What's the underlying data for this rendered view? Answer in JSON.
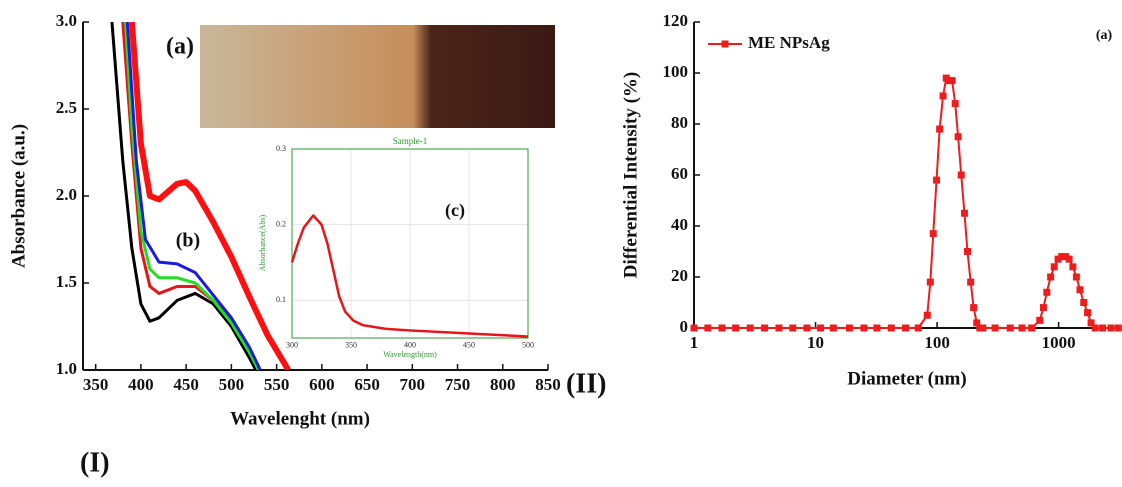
{
  "figure_labels": [
    "(I)",
    "(II)"
  ],
  "chart_data": [
    {
      "type": "line",
      "xlabel": "Wavelenght (nm)",
      "ylabel": "Absorbance (a.u.)",
      "annotations": [
        "(a)",
        "(b)"
      ],
      "xlim": [
        336,
        850
      ],
      "ylim": [
        1.0,
        3.0
      ],
      "xticks": [
        350,
        400,
        450,
        500,
        550,
        600,
        650,
        700,
        750,
        800,
        850
      ],
      "yticks": [
        {
          "value": 1.0,
          "label": "1.0"
        },
        {
          "value": 1.5,
          "label": "1.5"
        },
        {
          "value": 2.0,
          "label": "2.0"
        },
        {
          "value": 2.5,
          "label": "2.5"
        },
        {
          "value": 3.0,
          "label": "3.0"
        }
      ],
      "series": [
        {
          "color": "#000000",
          "line_width": 3,
          "x": [
            368,
            380,
            390,
            400,
            410,
            420,
            440,
            460,
            480,
            500,
            520,
            527
          ],
          "values": [
            3.0,
            2.2,
            1.7,
            1.38,
            1.28,
            1.3,
            1.4,
            1.44,
            1.38,
            1.25,
            1.07,
            1.0
          ]
        },
        {
          "color": "#e8141a",
          "line_width": 3,
          "x": [
            380,
            390,
            400,
            410,
            420,
            440,
            460,
            480,
            500,
            520,
            530
          ],
          "values": [
            3.0,
            2.3,
            1.7,
            1.48,
            1.44,
            1.48,
            1.48,
            1.4,
            1.28,
            1.1,
            1.0
          ]
        },
        {
          "color": "#22dd22",
          "line_width": 3,
          "x": [
            383,
            390,
            400,
            410,
            420,
            440,
            460,
            480,
            500,
            520,
            530
          ],
          "values": [
            3.0,
            2.4,
            1.8,
            1.58,
            1.53,
            1.53,
            1.5,
            1.4,
            1.27,
            1.1,
            1.0
          ]
        },
        {
          "color": "#1a1ae0",
          "line_width": 3,
          "x": [
            385,
            395,
            405,
            420,
            440,
            460,
            480,
            500,
            520,
            532
          ],
          "values": [
            3.0,
            2.2,
            1.75,
            1.62,
            1.61,
            1.56,
            1.43,
            1.3,
            1.13,
            1.0
          ]
        },
        {
          "color": "#ff1010",
          "line_width": 6,
          "x": [
            390,
            400,
            410,
            420,
            440,
            450,
            460,
            480,
            500,
            520,
            540,
            563
          ],
          "values": [
            3.0,
            2.3,
            2.0,
            1.98,
            2.07,
            2.08,
            2.03,
            1.85,
            1.65,
            1.42,
            1.2,
            1.0
          ]
        }
      ]
    },
    {
      "type": "line",
      "title": "Sample-1",
      "xlabel": "Wavelength(nm)",
      "ylabel": "Absorbance(Abs)",
      "annotations": [
        "(c)"
      ],
      "axis_color": "#2e9a2e",
      "grid": true,
      "xlim": [
        300,
        500
      ],
      "ylim": [
        0.05,
        0.3
      ],
      "xticks": [
        300,
        350,
        400,
        450,
        500
      ],
      "yticks": [
        0.1,
        0.2,
        0.3
      ],
      "series": [
        {
          "color": "#e8141a",
          "line_width": 2.5,
          "x": [
            300,
            305,
            310,
            318,
            325,
            330,
            335,
            340,
            345,
            352,
            360,
            380,
            400,
            450,
            500
          ],
          "values": [
            0.15,
            0.175,
            0.196,
            0.212,
            0.2,
            0.175,
            0.14,
            0.105,
            0.085,
            0.073,
            0.067,
            0.062,
            0.06,
            0.056,
            0.052
          ]
        }
      ]
    },
    {
      "type": "line",
      "xlabel": "Diameter (nm)",
      "ylabel": "Differential Intensity (%)",
      "annotations": [
        "(a)"
      ],
      "log_x": true,
      "marker": "square",
      "legend": "upper left",
      "xlim": [
        1,
        3200
      ],
      "ylim": [
        0,
        120
      ],
      "xticks": [
        1,
        10,
        100,
        1000
      ],
      "yticks": [
        0,
        20,
        40,
        60,
        80,
        100,
        120
      ],
      "series": [
        {
          "name": "ME NPsAg",
          "color": "#ee1c1c",
          "line_width": 2,
          "x": [
            1,
            1.3,
            1.7,
            2.2,
            2.9,
            3.8,
            5,
            6.5,
            8.5,
            11,
            14,
            19,
            25,
            32,
            42,
            55,
            70,
            83,
            88,
            93,
            99,
            105,
            112,
            119,
            126,
            133,
            141,
            149,
            158,
            168,
            178,
            189,
            200,
            212,
            225,
            238,
            300,
            400,
            500,
            600,
            700,
            750,
            800,
            860,
            920,
            990,
            1060,
            1140,
            1220,
            1310,
            1400,
            1500,
            1610,
            1730,
            1850,
            2000,
            2300,
            2700,
            3100
          ],
          "values": [
            0,
            0,
            0,
            0,
            0,
            0,
            0,
            0,
            0,
            0,
            0,
            0,
            0,
            0,
            0,
            0,
            0,
            5,
            18,
            37,
            58,
            78,
            91,
            98,
            97,
            97,
            88,
            75,
            60,
            45,
            30,
            18,
            8,
            2,
            0,
            0,
            0,
            0,
            0,
            0,
            3,
            8,
            14,
            20,
            24,
            27,
            28,
            28,
            27,
            24,
            20,
            15,
            10,
            6,
            2,
            0,
            0,
            0,
            0
          ]
        }
      ]
    }
  ]
}
